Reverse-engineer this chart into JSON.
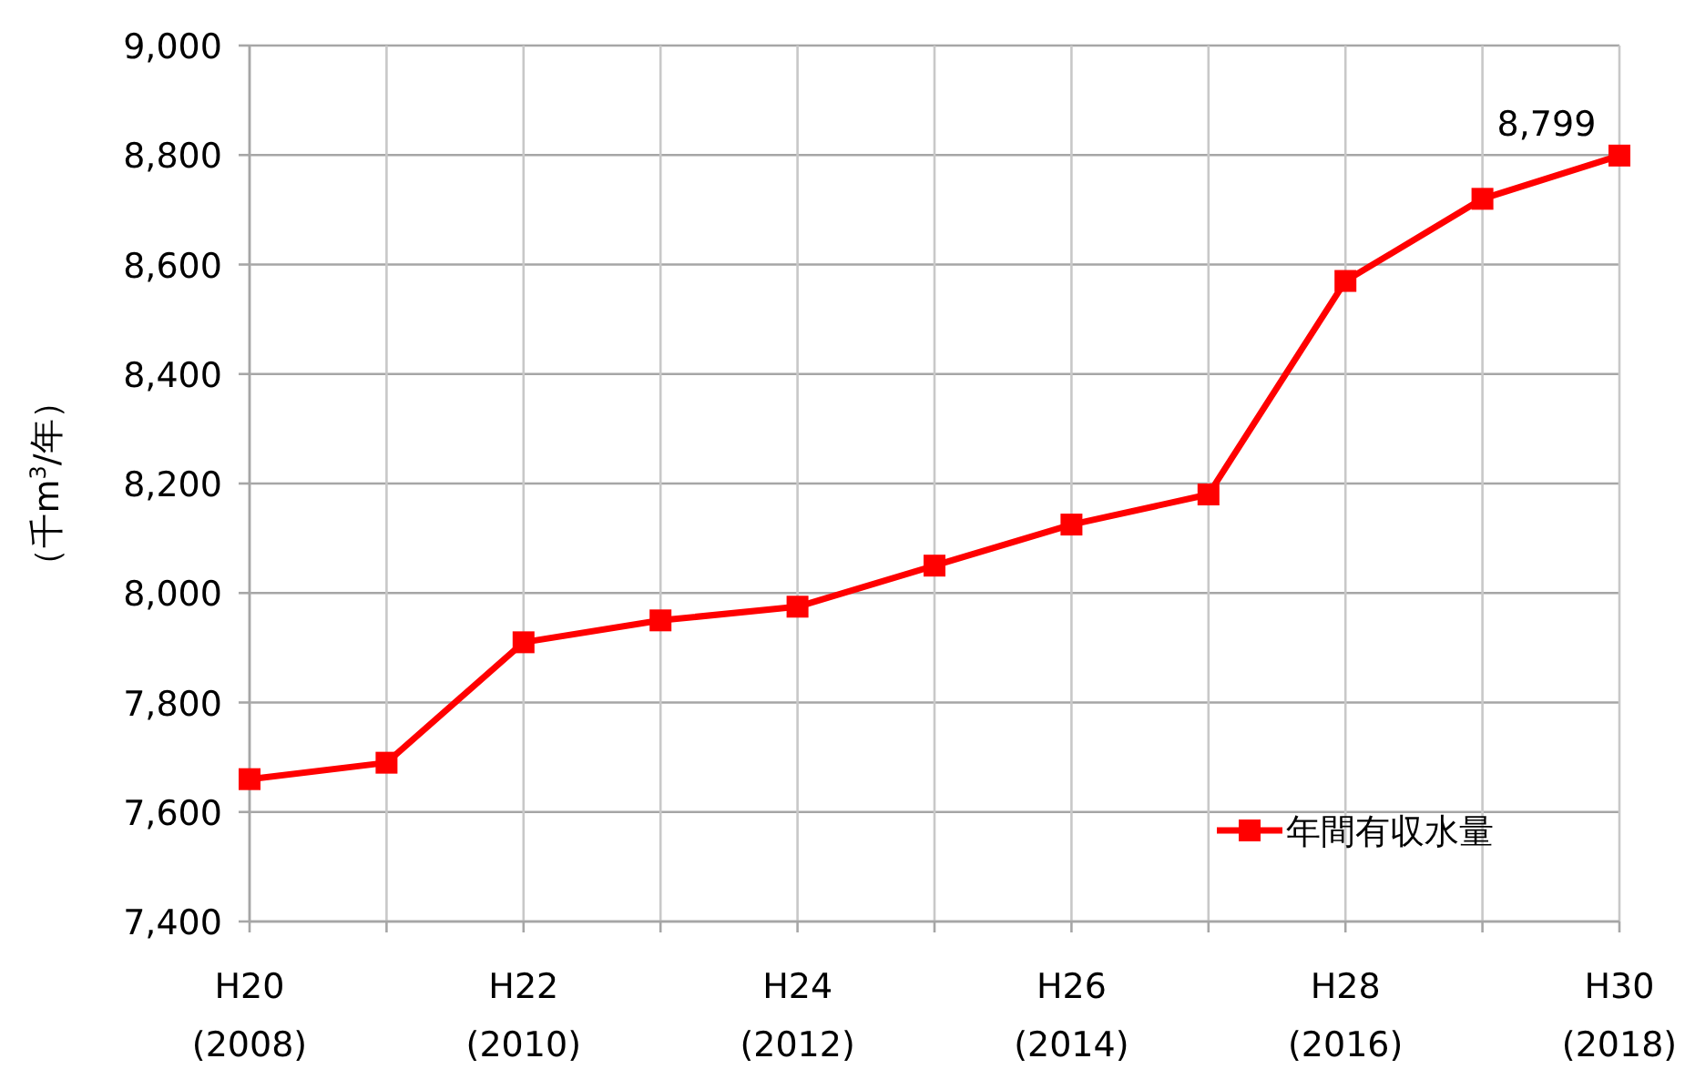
{
  "chart_data": {
    "type": "line",
    "ylabel": "（千m$^{3}$/年）",
    "categories": [
      "H20 (2008)",
      null,
      "H22 (2010)",
      null,
      "H24 (2012)",
      null,
      "H26 (2014)",
      null,
      "H28 (2016)",
      null,
      "H30 (2018)"
    ],
    "series": [
      {
        "name": "年間有収水量",
        "color": "#ff0000",
        "values": [
          7660,
          7690,
          7910,
          7950,
          7975,
          8050,
          8125,
          8180,
          8570,
          8720,
          8799
        ],
        "value_labels": [
          null,
          null,
          null,
          null,
          null,
          null,
          null,
          null,
          null,
          null,
          "8,799"
        ]
      }
    ],
    "ylim": [
      7400,
      9000
    ],
    "yticks": [
      {
        "value": 7400,
        "label": "7,400"
      },
      {
        "value": 7600,
        "label": "7,600"
      },
      {
        "value": 7800,
        "label": "7,800"
      },
      {
        "value": 8000,
        "label": "8,000"
      },
      {
        "value": 8200,
        "label": "8,200"
      },
      {
        "value": 8400,
        "label": "8,400"
      },
      {
        "value": 8600,
        "label": "8,600"
      },
      {
        "value": 8800,
        "label": "8,800"
      },
      {
        "value": 9000,
        "label": "9,000"
      }
    ],
    "grid": true,
    "legend": "bottom right",
    "marker": "square",
    "line_style": "solid"
  }
}
